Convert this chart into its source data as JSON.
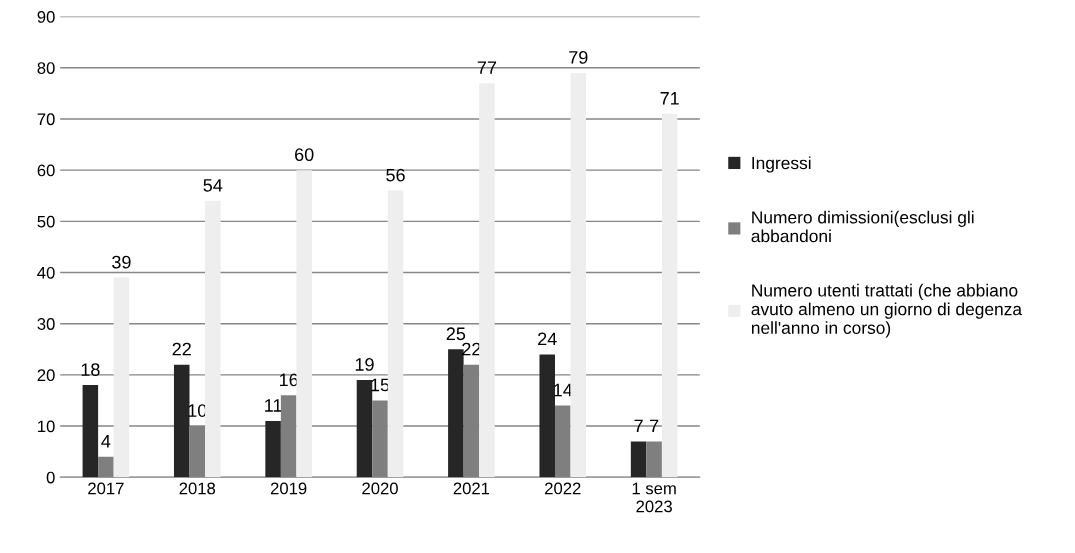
{
  "chart_data": {
    "type": "bar",
    "categories": [
      "2017",
      "2018",
      "2019",
      "2020",
      "2021",
      "2022",
      "1 sem\n2023"
    ],
    "series": [
      {
        "name": "Ingressi",
        "color": "#262626",
        "values": [
          18,
          22,
          11,
          19,
          25,
          24,
          7
        ]
      },
      {
        "name": "Numero dimissioni(esclusi gli\nabbandoni",
        "color": "#7f7f7f",
        "values": [
          4,
          10,
          16,
          15,
          22,
          14,
          7
        ]
      },
      {
        "name": "Numero utenti trattati (che abbiano\navuto almeno un giorno di degenza\nnell'anno in corso)",
        "color": "#eeeeee",
        "values": [
          39,
          54,
          60,
          56,
          77,
          79,
          71
        ]
      }
    ],
    "ylim": [
      0,
      90
    ],
    "yticks": [
      0,
      10,
      20,
      30,
      40,
      50,
      60,
      70,
      80,
      90
    ],
    "grid": "y",
    "legend": "right",
    "data_labels": true
  }
}
